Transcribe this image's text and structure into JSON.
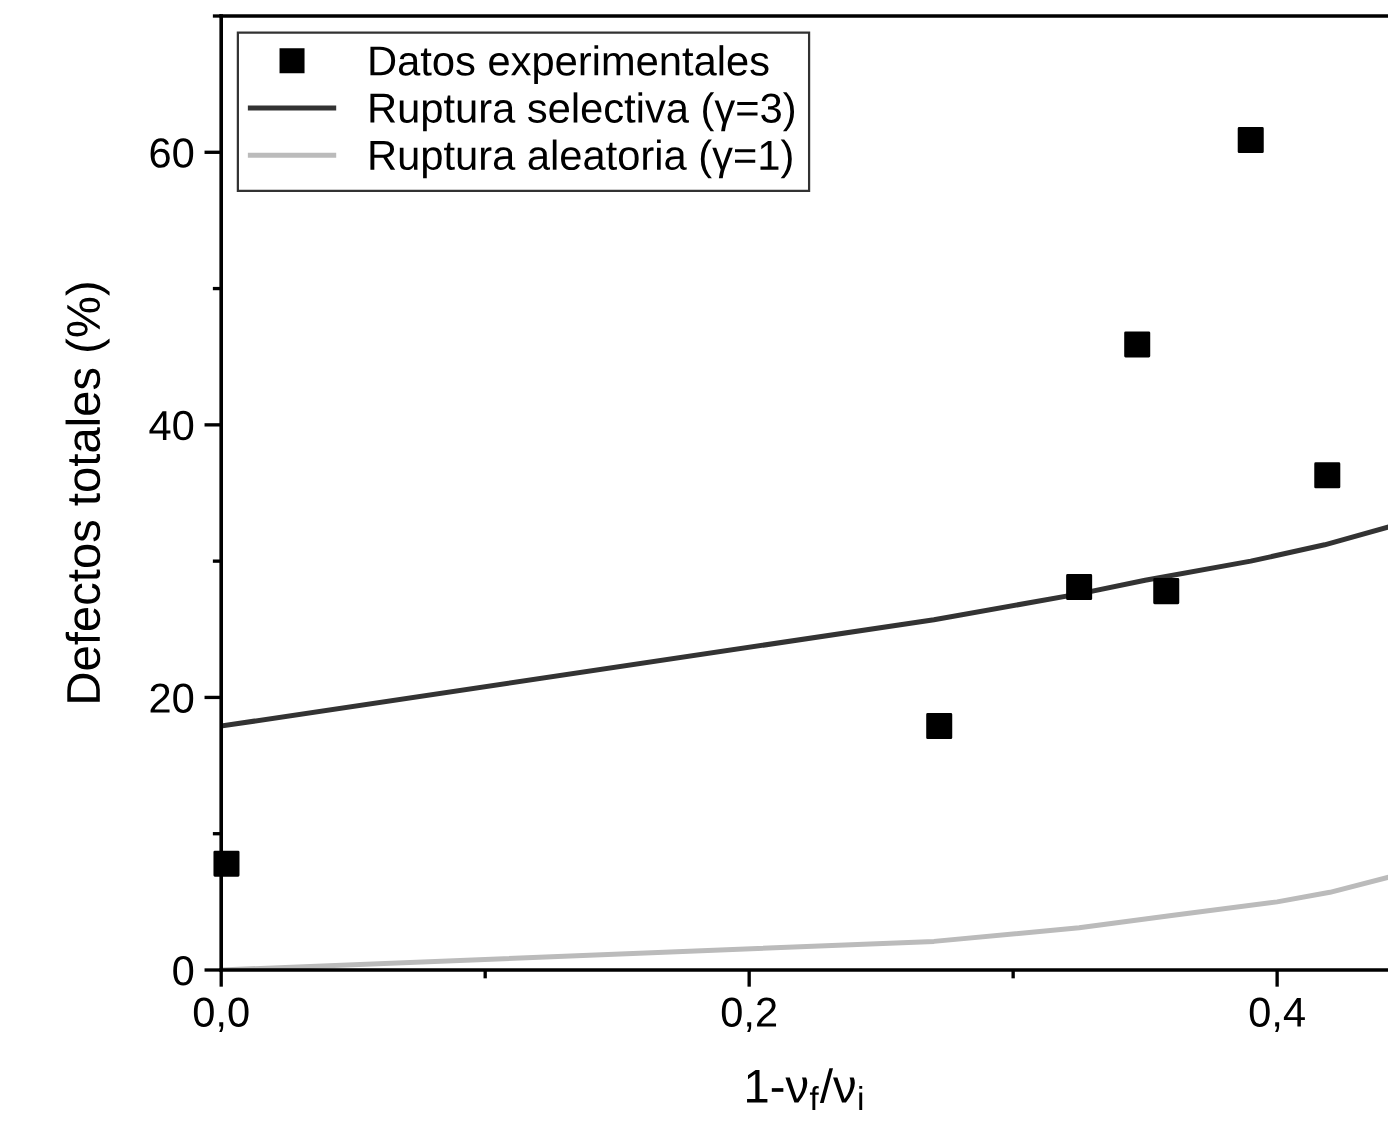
{
  "chart_data": {
    "type": "scatter",
    "xlabel": "1-ν$_{f}$/ν$_{i}$",
    "ylabel": "Defectos totales (%)",
    "xlim": [
      0,
      0.442
    ],
    "ylim": [
      0,
      70
    ],
    "xticks": [
      {
        "value": 0,
        "label": "0,0"
      },
      {
        "value": 0.1,
        "label": null
      },
      {
        "value": 0.2,
        "label": "0,2"
      },
      {
        "value": 0.3,
        "label": null
      },
      {
        "value": 0.4,
        "label": "0,4"
      }
    ],
    "yticks": [
      0,
      {
        "value": 10,
        "label": null
      },
      20,
      {
        "value": 30,
        "label": null
      },
      40,
      {
        "value": 50,
        "label": null
      },
      60,
      {
        "value": 70,
        "label": null
      }
    ],
    "grid": false,
    "legend": "top left",
    "series": [
      {
        "name": "Datos experimentales",
        "marker": "square",
        "color": "#000000",
        "x": [
          0.002,
          0.272,
          0.325,
          0.347,
          0.358,
          0.39,
          0.419
        ],
        "values": [
          7.8,
          17.9,
          28.1,
          45.9,
          27.8,
          60.9,
          36.3
        ]
      },
      {
        "name": "Ruptura selectiva (γ=3)",
        "type": "line",
        "line_style": "solid",
        "color": "#333333",
        "x": [
          0,
          0.27,
          0.325,
          0.35,
          0.39,
          0.418,
          0.442
        ],
        "values": [
          17.9,
          25.7,
          27.6,
          28.6,
          30.0,
          31.2,
          32.5
        ]
      },
      {
        "name": "Ruptura aleatoria (γ=1)",
        "type": "line",
        "line_style": "solid",
        "color": "#bbbbbb",
        "x": [
          0,
          0.27,
          0.325,
          0.36,
          0.4,
          0.42,
          0.442
        ],
        "values": [
          0,
          2.1,
          3.1,
          4.0,
          5.0,
          5.7,
          6.8
        ]
      }
    ]
  }
}
